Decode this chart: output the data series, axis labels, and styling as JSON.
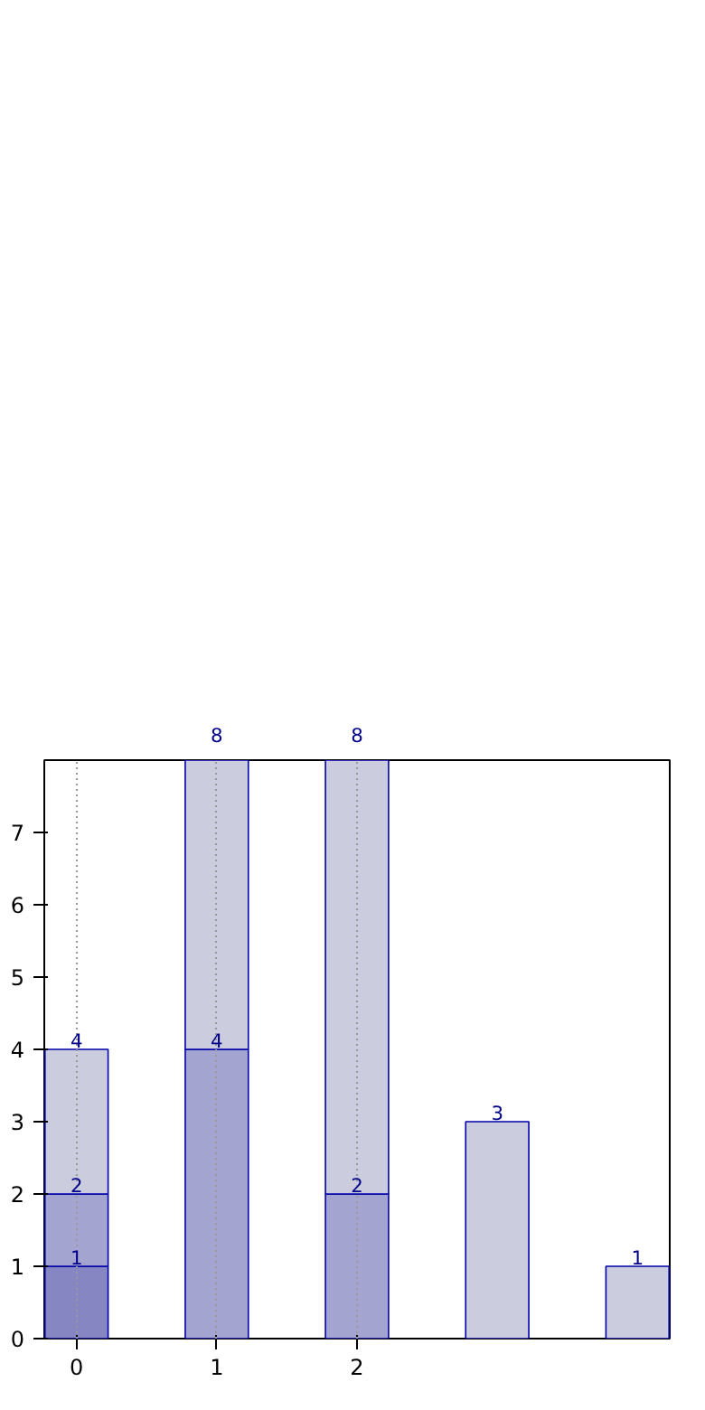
{
  "chart_data": {
    "type": "bar",
    "stacked": true,
    "x": [
      0,
      1,
      2,
      3,
      4
    ],
    "xlim": [
      -0.23,
      4.23
    ],
    "xticks": [
      0,
      1,
      2
    ],
    "ylim": [
      0,
      8
    ],
    "yticks": [
      0,
      1,
      2,
      3,
      4,
      5,
      6,
      7
    ],
    "grid": "x",
    "series": [
      {
        "color": "#8686c2",
        "values": [
          1,
          null,
          null,
          null,
          null
        ]
      },
      {
        "color": "#a4a4d0",
        "values": [
          1,
          4,
          2,
          null,
          null
        ]
      },
      {
        "color": "#ccccdf",
        "values": [
          2,
          4,
          6,
          3,
          1
        ]
      }
    ],
    "annotations": [
      {
        "text": "1",
        "x": 0,
        "y": 1
      },
      {
        "text": "2",
        "x": 0,
        "y": 2
      },
      {
        "text": "4",
        "x": 0,
        "y": 4
      },
      {
        "text": "4",
        "x": 1,
        "y": 4
      },
      {
        "text": "8",
        "x": 1,
        "y": 8
      },
      {
        "text": "2",
        "x": 2,
        "y": 2
      },
      {
        "text": "8",
        "x": 2,
        "y": 8
      },
      {
        "text": "3",
        "x": 3,
        "y": 3
      },
      {
        "text": "1",
        "x": 4,
        "y": 1
      }
    ]
  }
}
